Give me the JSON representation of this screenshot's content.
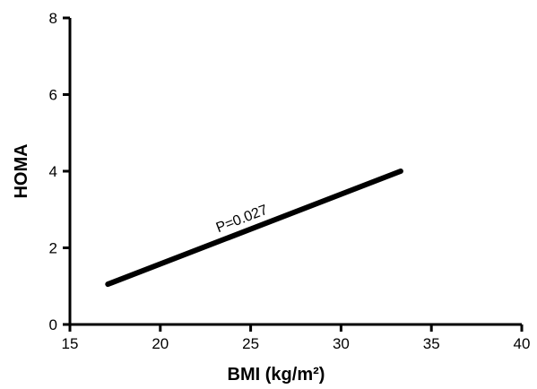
{
  "chart_data": {
    "type": "line",
    "title": "",
    "xlabel": "BMI (kg/m²)",
    "ylabel": "HOMA",
    "xlim": [
      15,
      40
    ],
    "ylim": [
      0,
      8
    ],
    "xticks": [
      15,
      20,
      25,
      30,
      35,
      40
    ],
    "yticks": [
      0,
      2,
      4,
      6,
      8
    ],
    "grid": false,
    "series": [
      {
        "x": [
          17.1,
          33.3
        ],
        "y": [
          1.05,
          4.0
        ]
      }
    ],
    "annotations": [
      {
        "text": "P=0.027",
        "x": 24.6,
        "y": 2.65
      }
    ],
    "colors": {
      "line": "#000000",
      "axis": "#000000"
    }
  }
}
